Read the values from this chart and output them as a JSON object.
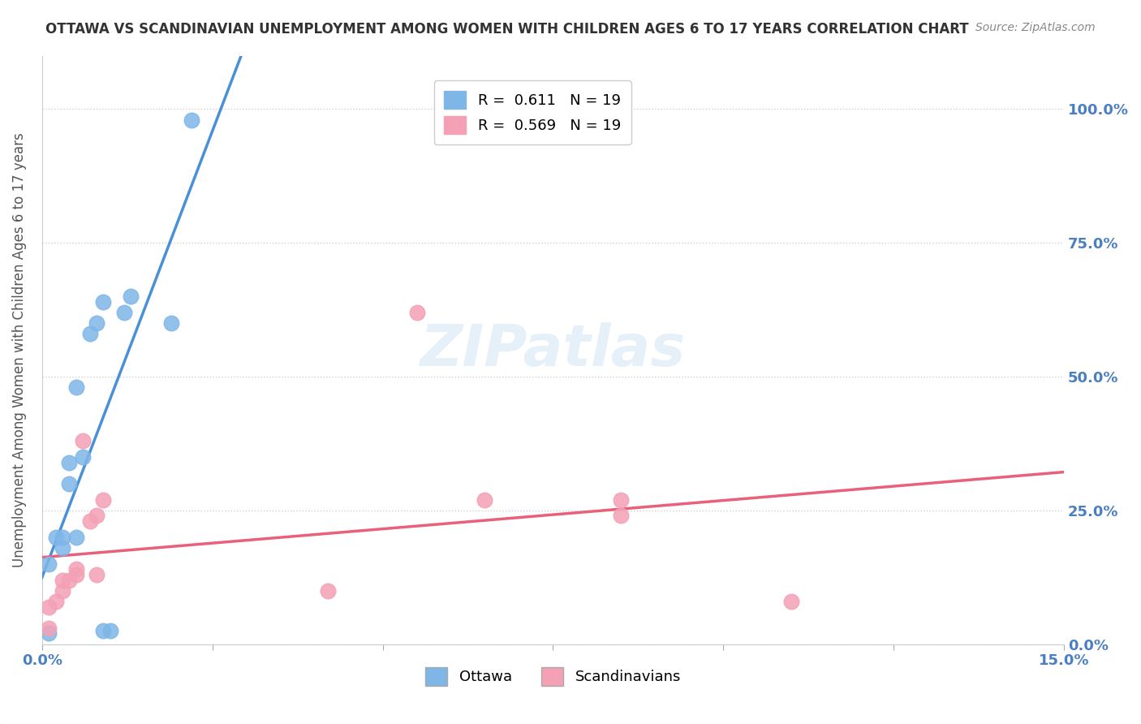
{
  "title": "OTTAWA VS SCANDINAVIAN UNEMPLOYMENT AMONG WOMEN WITH CHILDREN AGES 6 TO 17 YEARS CORRELATION CHART",
  "source": "Source: ZipAtlas.com",
  "xlabel_bottom": "",
  "ylabel": "Unemployment Among Women with Children Ages 6 to 17 years",
  "xlim": [
    0.0,
    0.15
  ],
  "ylim": [
    0.0,
    1.1
  ],
  "xticks": [
    0.0,
    0.025,
    0.05,
    0.075,
    0.1,
    0.125,
    0.15
  ],
  "xticklabels": [
    "0.0%",
    "",
    "",
    "",
    "",
    "",
    "15.0%"
  ],
  "yticks_left": [
    0.0,
    0.25,
    0.5,
    0.75,
    1.0
  ],
  "ytick_labels_right": [
    "0.0%",
    "25.0%",
    "50.0%",
    "75.0%",
    "100.0%"
  ],
  "watermark": "ZIPatlas",
  "legend_r1": "R =  0.611",
  "legend_n1": "N = 19",
  "legend_r2": "R =  0.569",
  "legend_n2": "N = 19",
  "ottawa_color": "#7eb6e8",
  "scandinavian_color": "#f4a0b5",
  "ottawa_line_color": "#4a90d9",
  "scandinavian_line_color": "#e8607a",
  "ottawa_x": [
    0.001,
    0.001,
    0.002,
    0.003,
    0.003,
    0.004,
    0.004,
    0.005,
    0.005,
    0.006,
    0.007,
    0.008,
    0.009,
    0.009,
    0.01,
    0.012,
    0.013,
    0.019,
    0.022
  ],
  "ottawa_y": [
    0.02,
    0.15,
    0.2,
    0.18,
    0.2,
    0.3,
    0.34,
    0.48,
    0.2,
    0.35,
    0.58,
    0.6,
    0.64,
    0.025,
    0.025,
    0.62,
    0.65,
    0.6,
    0.98
  ],
  "scandinavian_x": [
    0.001,
    0.001,
    0.002,
    0.003,
    0.003,
    0.004,
    0.005,
    0.005,
    0.006,
    0.007,
    0.008,
    0.008,
    0.009,
    0.042,
    0.055,
    0.065,
    0.085,
    0.085,
    0.11
  ],
  "scandinavian_y": [
    0.03,
    0.07,
    0.08,
    0.1,
    0.12,
    0.12,
    0.13,
    0.14,
    0.38,
    0.23,
    0.24,
    0.13,
    0.27,
    0.1,
    0.62,
    0.27,
    0.24,
    0.27,
    0.08
  ],
  "background_color": "#ffffff",
  "grid_color": "#d0d0d0"
}
